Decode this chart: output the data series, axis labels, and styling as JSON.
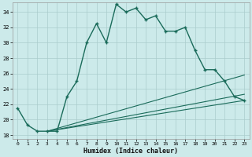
{
  "xlabel": "Humidex (Indice chaleur)",
  "bg_color": "#cceaea",
  "grid_color": "#aacccc",
  "line_color": "#1a6b5a",
  "xlim": [
    -0.5,
    23.5
  ],
  "ylim": [
    17.5,
    35.2
  ],
  "xticks": [
    0,
    1,
    2,
    3,
    4,
    5,
    6,
    7,
    8,
    9,
    10,
    11,
    12,
    13,
    14,
    15,
    16,
    17,
    18,
    19,
    20,
    21,
    22,
    23
  ],
  "yticks": [
    18,
    20,
    22,
    24,
    26,
    28,
    30,
    32,
    34
  ],
  "main_line_x": [
    0,
    1,
    2,
    3,
    4,
    5,
    6,
    7,
    8,
    9,
    10,
    11,
    12,
    13,
    14,
    15,
    16,
    17,
    18,
    19,
    20,
    21,
    22,
    23
  ],
  "main_line_y": [
    21.5,
    19.3,
    18.5,
    18.5,
    18.5,
    23.0,
    25.0,
    30.0,
    32.5,
    30.0,
    35.0,
    34.0,
    34.5,
    33.0,
    33.5,
    31.5,
    31.5,
    32.0,
    29.0,
    26.5,
    26.5,
    25.0,
    23.0,
    22.5
  ],
  "line1_x": [
    3,
    23
  ],
  "line1_y": [
    18.5,
    22.5
  ],
  "line2_x": [
    3,
    23
  ],
  "line2_y": [
    18.5,
    23.3
  ],
  "line3_x": [
    3,
    23
  ],
  "line3_y": [
    18.5,
    25.8
  ]
}
